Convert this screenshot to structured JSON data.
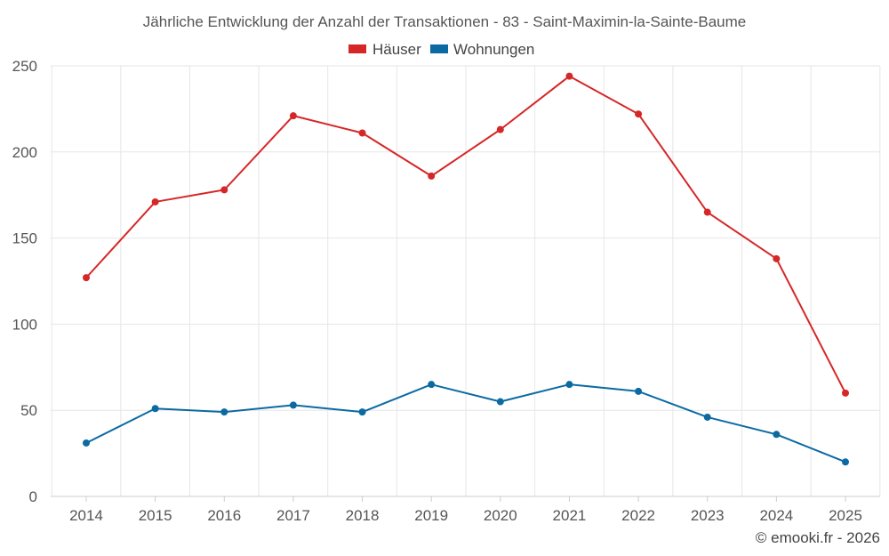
{
  "chart_data": {
    "type": "line",
    "title": "Jährliche Entwicklung der Anzahl der Transaktionen - 83 - Saint-Maximin-la-Sainte-Baume",
    "x": [
      "2014",
      "2015",
      "2016",
      "2017",
      "2018",
      "2019",
      "2020",
      "2021",
      "2022",
      "2023",
      "2024",
      "2025"
    ],
    "yticks": [
      "0",
      "50",
      "100",
      "150",
      "200",
      "250"
    ],
    "ylim": [
      0,
      250
    ],
    "grid": true,
    "legend_position": "top-center",
    "series": [
      {
        "name": "Häuser",
        "color": "#d62728",
        "values": [
          127,
          171,
          178,
          221,
          211,
          186,
          213,
          244,
          222,
          165,
          138,
          60
        ]
      },
      {
        "name": "Wohnungen",
        "color": "#0b6aa2",
        "values": [
          31,
          51,
          49,
          53,
          49,
          65,
          55,
          65,
          61,
          46,
          36,
          20
        ]
      }
    ]
  },
  "credit": "© emooki.fr - 2026"
}
